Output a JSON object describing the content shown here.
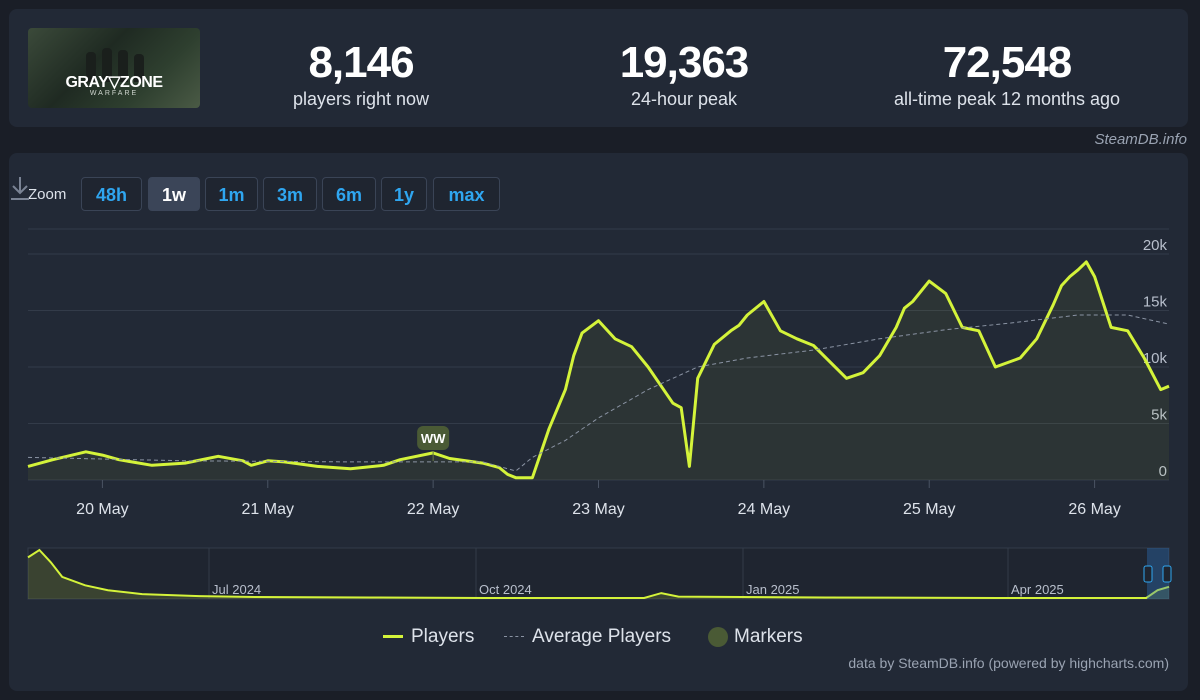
{
  "stats": {
    "current": {
      "value": "8,146",
      "label": "players right now"
    },
    "peak24": {
      "value": "19,363",
      "label": "24-hour peak"
    },
    "alltime": {
      "value": "72,548",
      "label": "all-time peak 12 months ago"
    }
  },
  "game": {
    "logo_line1": "GRAY▽ZONE",
    "logo_line2": "WARFARE"
  },
  "credit_top": "SteamDB.info",
  "zoom": {
    "label": "Zoom",
    "buttons": [
      {
        "label": "48h",
        "active": false
      },
      {
        "label": "1w",
        "active": true
      },
      {
        "label": "1m",
        "active": false
      },
      {
        "label": "3m",
        "active": false
      },
      {
        "label": "6m",
        "active": false
      },
      {
        "label": "1y",
        "active": false
      },
      {
        "label": "max",
        "active": false
      }
    ]
  },
  "colors": {
    "players": "#d4f33a",
    "average": "#8a93a3",
    "marker": "#4a5a35",
    "accent": "#2fa6f0"
  },
  "icons": {
    "download": "download-icon"
  },
  "chart_data": {
    "type": "line",
    "y_ticks": [
      "0",
      "5k",
      "10k",
      "15k",
      "20k"
    ],
    "ylim": [
      0,
      20000
    ],
    "x_ticks": [
      "20 May",
      "21 May",
      "22 May",
      "23 May",
      "24 May",
      "25 May",
      "26 May"
    ],
    "xlim": [
      19.55,
      26.45
    ],
    "series": [
      {
        "name": "Players",
        "x": [
          19.55,
          19.7,
          19.9,
          20.0,
          20.1,
          20.3,
          20.5,
          20.7,
          20.85,
          20.9,
          21.0,
          21.1,
          21.3,
          21.5,
          21.7,
          21.8,
          22.0,
          22.1,
          22.3,
          22.4,
          22.45,
          22.5,
          22.55,
          22.6,
          22.7,
          22.8,
          22.85,
          22.9,
          23.0,
          23.1,
          23.2,
          23.3,
          23.45,
          23.5,
          23.55,
          23.6,
          23.7,
          23.8,
          23.85,
          23.9,
          24.0,
          24.1,
          24.2,
          24.3,
          24.5,
          24.6,
          24.7,
          24.8,
          24.85,
          24.9,
          25.0,
          25.1,
          25.2,
          25.3,
          25.4,
          25.55,
          25.65,
          25.75,
          25.8,
          25.85,
          25.9,
          25.95,
          26.0,
          26.1,
          26.2,
          26.3,
          26.4,
          26.45
        ],
        "y": [
          1200,
          1800,
          2500,
          2200,
          1800,
          1300,
          1500,
          2100,
          1700,
          1300,
          1700,
          1600,
          1200,
          1000,
          1300,
          1800,
          2400,
          1900,
          1500,
          1100,
          500,
          200,
          200,
          200,
          4500,
          8000,
          11000,
          13000,
          14100,
          12500,
          11800,
          10000,
          6800,
          6400,
          1200,
          9000,
          12000,
          13200,
          13700,
          14600,
          15800,
          13200,
          12500,
          11900,
          9000,
          9500,
          11000,
          13500,
          15200,
          15800,
          17600,
          16500,
          13500,
          13200,
          10000,
          10800,
          12500,
          15500,
          17200,
          18000,
          18600,
          19300,
          18000,
          13500,
          13200,
          10800,
          8000,
          8300
        ]
      },
      {
        "name": "Average Players",
        "x": [
          19.55,
          20.5,
          21.5,
          22.3,
          22.5,
          22.6,
          22.8,
          23.0,
          23.3,
          23.6,
          23.9,
          24.3,
          24.7,
          25.1,
          25.5,
          25.9,
          26.2,
          26.45
        ],
        "y": [
          2000,
          1700,
          1600,
          1600,
          800,
          2000,
          3500,
          5500,
          8000,
          10000,
          10800,
          11500,
          12500,
          13300,
          13900,
          14600,
          14600,
          13800
        ]
      }
    ],
    "markers": [
      {
        "label": "WW",
        "x": 22.0
      }
    ],
    "navigator": {
      "labels": [
        "Jul 2024",
        "Oct 2024",
        "Jan 2025",
        "Apr 2025"
      ],
      "series": [
        {
          "x": 0.0,
          "y": 0.85
        },
        {
          "x": 0.01,
          "y": 1.0
        },
        {
          "x": 0.02,
          "y": 0.75
        },
        {
          "x": 0.03,
          "y": 0.45
        },
        {
          "x": 0.05,
          "y": 0.28
        },
        {
          "x": 0.07,
          "y": 0.18
        },
        {
          "x": 0.1,
          "y": 0.1
        },
        {
          "x": 0.15,
          "y": 0.06
        },
        {
          "x": 0.2,
          "y": 0.04
        },
        {
          "x": 0.3,
          "y": 0.03
        },
        {
          "x": 0.4,
          "y": 0.02
        },
        {
          "x": 0.54,
          "y": 0.02
        },
        {
          "x": 0.555,
          "y": 0.12
        },
        {
          "x": 0.57,
          "y": 0.05
        },
        {
          "x": 0.7,
          "y": 0.03
        },
        {
          "x": 0.85,
          "y": 0.02
        },
        {
          "x": 0.98,
          "y": 0.02
        },
        {
          "x": 0.99,
          "y": 0.18
        },
        {
          "x": 1.0,
          "y": 0.25
        }
      ]
    }
  },
  "legend": [
    {
      "name": "Players",
      "type": "line"
    },
    {
      "name": "Average Players",
      "type": "dash"
    },
    {
      "name": "Markers",
      "type": "dot"
    }
  ],
  "credit_bottom": "data by SteamDB.info (powered by highcharts.com)"
}
